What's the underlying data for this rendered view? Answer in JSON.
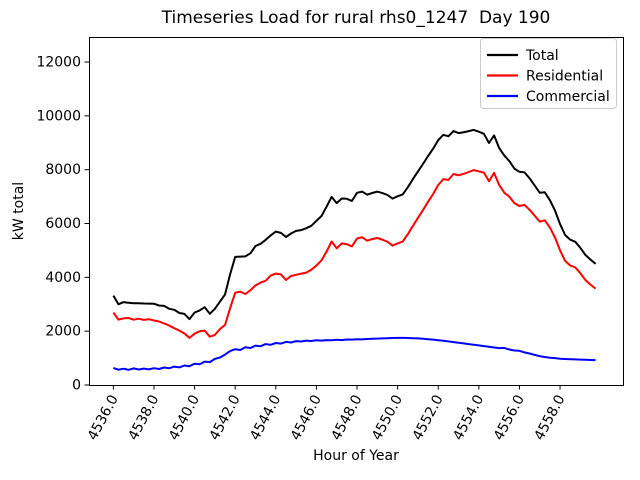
{
  "chart_data": {
    "type": "line",
    "title": "Timeseries Load for rural rhs0_1247  Day 190",
    "xlabel": "Hour of Year",
    "ylabel": "kW total",
    "xlim": [
      4534.8,
      4561.1
    ],
    "ylim": [
      0,
      12930
    ],
    "x_tick_values": [
      4536,
      4538,
      4540,
      4542,
      4544,
      4546,
      4548,
      4550,
      4552,
      4554,
      4556,
      4558
    ],
    "x_tick_labels": [
      "4536.0",
      "4538.0",
      "4540.0",
      "4542.0",
      "4544.0",
      "4546.0",
      "4548.0",
      "4550.0",
      "4552.0",
      "4554.0",
      "4556.0",
      "4558.0"
    ],
    "y_tick_values": [
      0,
      2000,
      4000,
      6000,
      8000,
      10000,
      12000
    ],
    "y_tick_labels": [
      "0",
      "2000",
      "4000",
      "6000",
      "8000",
      "10000",
      "12000"
    ],
    "x_tick_rotation": -62,
    "grid": false,
    "legend": {
      "position": "upper-right",
      "border_color": "#cccccc"
    },
    "x_start": 4536.0,
    "x_step": 0.25,
    "series": [
      {
        "name": "Total",
        "color": "#000000",
        "values": [
          3320,
          3000,
          3080,
          3055,
          3040,
          3040,
          3030,
          3025,
          3020,
          2955,
          2940,
          2830,
          2795,
          2675,
          2640,
          2450,
          2695,
          2770,
          2890,
          2645,
          2830,
          3100,
          3360,
          4110,
          4760,
          4770,
          4780,
          4895,
          5165,
          5245,
          5390,
          5560,
          5700,
          5650,
          5500,
          5630,
          5725,
          5755,
          5825,
          5915,
          6100,
          6280,
          6630,
          6990,
          6760,
          6930,
          6920,
          6835,
          7140,
          7185,
          7070,
          7135,
          7185,
          7130,
          7060,
          6925,
          7010,
          7080,
          7345,
          7650,
          7930,
          8215,
          8510,
          8785,
          9095,
          9295,
          9240,
          9435,
          9360,
          9390,
          9435,
          9480,
          9410,
          9335,
          8990,
          9275,
          8810,
          8530,
          8320,
          8040,
          7920,
          7900,
          7680,
          7410,
          7140,
          7160,
          6865,
          6480,
          5975,
          5575,
          5400,
          5320,
          5095,
          4835,
          4660,
          4505
        ]
      },
      {
        "name": "Residential",
        "color": "#ff0000",
        "values": [
          2690,
          2430,
          2475,
          2490,
          2425,
          2465,
          2420,
          2445,
          2395,
          2360,
          2290,
          2210,
          2110,
          2020,
          1915,
          1750,
          1905,
          2000,
          2020,
          1795,
          1860,
          2080,
          2230,
          2850,
          3430,
          3470,
          3380,
          3520,
          3700,
          3805,
          3870,
          4065,
          4140,
          4110,
          3900,
          4050,
          4095,
          4140,
          4175,
          4280,
          4440,
          4630,
          4960,
          5330,
          5080,
          5260,
          5230,
          5150,
          5440,
          5490,
          5360,
          5420,
          5460,
          5400,
          5320,
          5180,
          5260,
          5330,
          5600,
          5910,
          6200,
          6500,
          6810,
          7100,
          7430,
          7650,
          7620,
          7840,
          7790,
          7845,
          7915,
          7985,
          7940,
          7890,
          7570,
          7880,
          7440,
          7150,
          7000,
          6760,
          6650,
          6690,
          6510,
          6290,
          6070,
          6120,
          5850,
          5480,
          5000,
          4610,
          4440,
          4370,
          4150,
          3900,
          3730,
          3580
        ]
      },
      {
        "name": "Commercial",
        "color": "#0000ff",
        "values": [
          630,
          570,
          605,
          565,
          615,
          575,
          610,
          580,
          625,
          595,
          650,
          620,
          685,
          655,
          725,
          700,
          790,
          770,
          870,
          850,
          970,
          1020,
          1130,
          1260,
          1330,
          1300,
          1400,
          1375,
          1465,
          1440,
          1520,
          1495,
          1560,
          1540,
          1600,
          1580,
          1630,
          1615,
          1650,
          1635,
          1660,
          1650,
          1670,
          1660,
          1680,
          1670,
          1690,
          1685,
          1700,
          1695,
          1710,
          1715,
          1725,
          1730,
          1740,
          1745,
          1750,
          1750,
          1745,
          1740,
          1730,
          1715,
          1700,
          1685,
          1665,
          1645,
          1620,
          1595,
          1570,
          1545,
          1520,
          1495,
          1470,
          1445,
          1420,
          1395,
          1370,
          1380,
          1320,
          1280,
          1270,
          1210,
          1170,
          1120,
          1070,
          1040,
          1015,
          1000,
          975,
          965,
          960,
          950,
          945,
          935,
          930,
          925
        ]
      }
    ]
  }
}
